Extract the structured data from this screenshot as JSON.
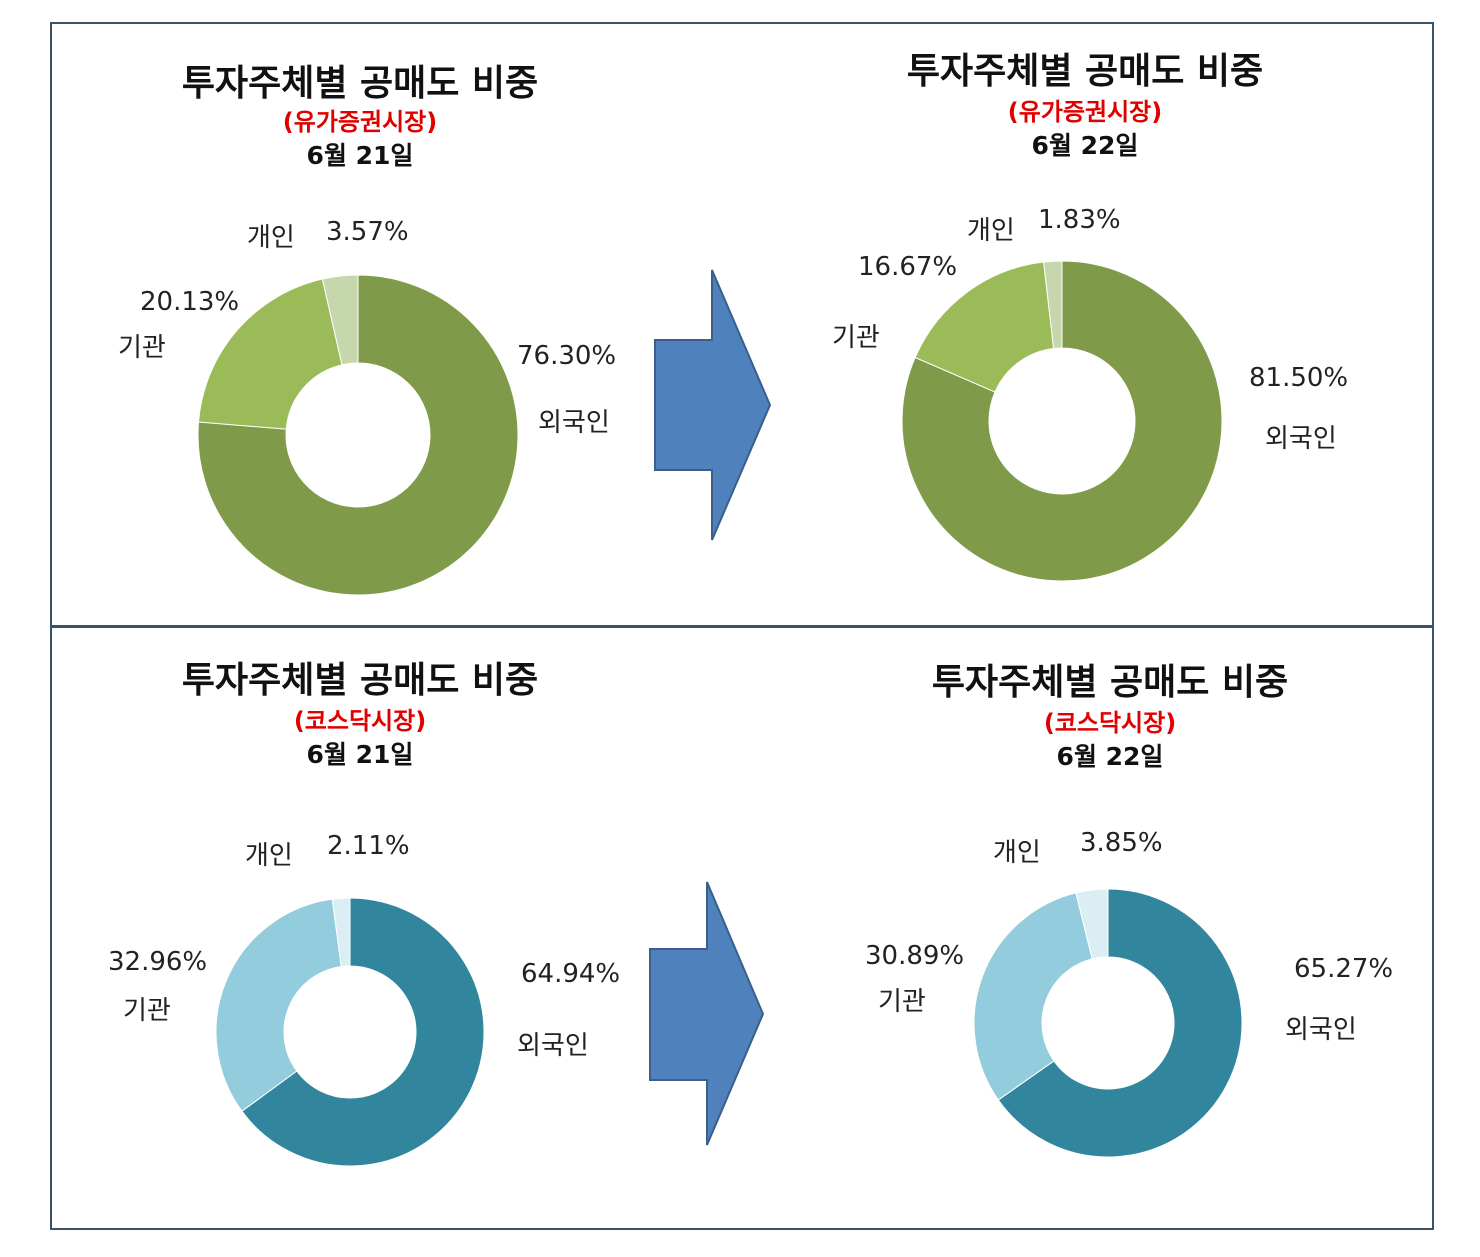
{
  "chart_data": [
    {
      "type": "pie",
      "title": "투자주체별 공매도 비중",
      "market": "(유가증권시장)",
      "date": "6월 21일",
      "categories": [
        "외국인",
        "기관",
        "개인"
      ],
      "values": [
        76.3,
        20.13,
        3.57
      ],
      "value_labels": [
        "76.30%",
        "20.13%",
        "3.57%"
      ],
      "colors": [
        "#7f9a48",
        "#9bbb59",
        "#c6d7ad"
      ]
    },
    {
      "type": "pie",
      "title": "투자주체별 공매도 비중",
      "market": "(유가증권시장)",
      "date": "6월 22일",
      "categories": [
        "외국인",
        "기관",
        "개인"
      ],
      "values": [
        81.5,
        16.67,
        1.83
      ],
      "value_labels": [
        "81.50%",
        "16.67%",
        "1.83%"
      ],
      "colors": [
        "#7f9a48",
        "#9bbb59",
        "#c6d7ad"
      ]
    },
    {
      "type": "pie",
      "title": "투자주체별 공매도 비중",
      "market": "(코스닥시장)",
      "date": "6월 21일",
      "categories": [
        "외국인",
        "기관",
        "개인"
      ],
      "values": [
        64.94,
        32.96,
        2.11
      ],
      "value_labels": [
        "64.94%",
        "32.96%",
        "2.11%"
      ],
      "colors": [
        "#31859c",
        "#93cddd",
        "#dbeef3"
      ]
    },
    {
      "type": "pie",
      "title": "투자주체별 공매도 비중",
      "market": "(코스닥시장)",
      "date": "6월 22일",
      "categories": [
        "외국인",
        "기관",
        "개인"
      ],
      "values": [
        65.27,
        30.89,
        3.85
      ],
      "value_labels": [
        "65.27%",
        "30.89%",
        "3.85%"
      ],
      "colors": [
        "#31859c",
        "#93cddd",
        "#dbeef3"
      ]
    }
  ],
  "arrow_color": "#4f81bd"
}
